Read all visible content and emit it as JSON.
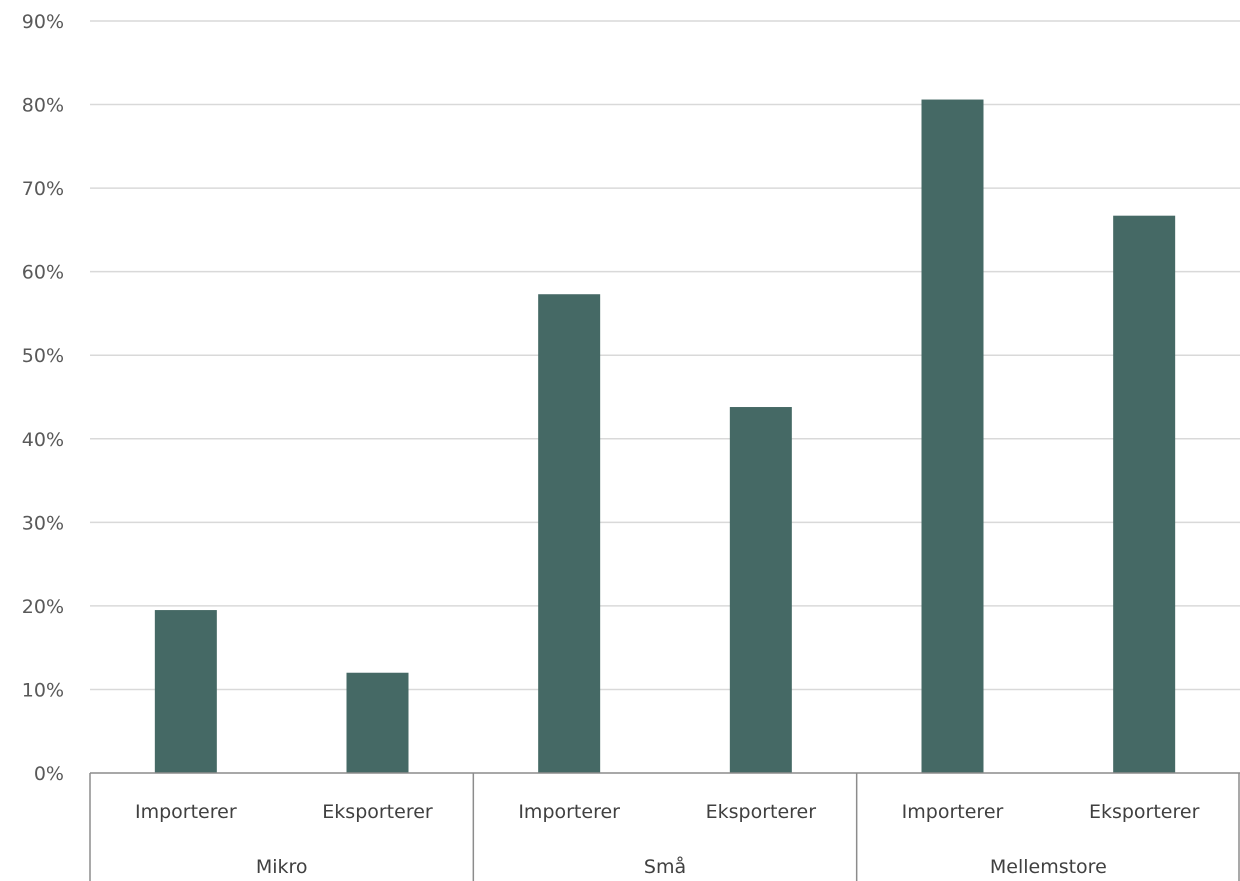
{
  "chart_data": {
    "type": "bar",
    "groups": [
      {
        "name": "Mikro",
        "categories": [
          "Importerer",
          "Eksporterer"
        ],
        "values": [
          19.5,
          12
        ]
      },
      {
        "name": "Små",
        "categories": [
          "Importerer",
          "Eksporterer"
        ],
        "values": [
          57.3,
          43.8
        ]
      },
      {
        "name": "Mellemstore",
        "categories": [
          "Importerer",
          "Eksporterer"
        ],
        "values": [
          80.6,
          66.7
        ]
      }
    ],
    "ylim": [
      0,
      90
    ],
    "yticks": [
      "0%",
      "10%",
      "20%",
      "30%",
      "40%",
      "50%",
      "60%",
      "70%",
      "80%",
      "90%"
    ],
    "grid": true,
    "bar_color": "#456965"
  }
}
